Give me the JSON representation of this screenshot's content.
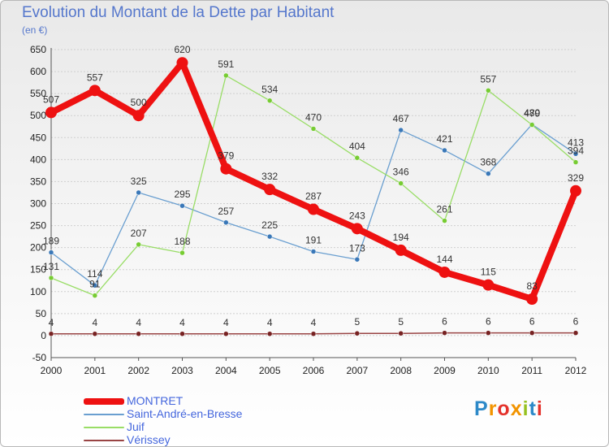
{
  "title": "Evolution du Montant de la Dette par Habitant",
  "subtitle": "(en €)",
  "logo": {
    "letters": [
      "P",
      "r",
      "o",
      "x",
      "i",
      "t",
      "i"
    ],
    "colors": [
      "#2d89c8",
      "#f29400",
      "#e4322b",
      "#f29400",
      "#95c11f",
      "#2d89c8",
      "#e4322b"
    ]
  },
  "chart_data": {
    "type": "line",
    "title": "Evolution du Montant de la Dette par Habitant",
    "ylabel": "(en €)",
    "xlabel": "",
    "x": [
      "2000",
      "2001",
      "2002",
      "2003",
      "2004",
      "2005",
      "2006",
      "2007",
      "2008",
      "2009",
      "2010",
      "2011",
      "2012"
    ],
    "ylim": [
      -50,
      650
    ],
    "yticks": [
      -50,
      0,
      50,
      100,
      150,
      200,
      250,
      300,
      350,
      400,
      450,
      500,
      550,
      600,
      650
    ],
    "grid": "horizontal",
    "legend": "bottom-left",
    "series": [
      {
        "name": "Saint-André-en-Bresse",
        "color": "#6a9fd0",
        "marker": "#3a78b8",
        "width": 1.3,
        "radius": 3,
        "values": [
          189,
          114,
          325,
          295,
          257,
          225,
          191,
          173,
          467,
          421,
          368,
          480,
          413
        ],
        "labels": [
          "189",
          "114",
          "325",
          "295",
          "257",
          "225",
          "191",
          "173",
          "467",
          "421",
          "368",
          "480",
          "413"
        ]
      },
      {
        "name": "Juif",
        "color": "#99dd66",
        "marker": "#77cc33",
        "width": 1.3,
        "radius": 3,
        "values": [
          131,
          91,
          207,
          188,
          591,
          534,
          470,
          404,
          346,
          261,
          557,
          479,
          394
        ],
        "labels": [
          "131",
          "91",
          "207",
          "188",
          "591",
          "534",
          "470",
          "404",
          "346",
          "261",
          "557",
          "479",
          "394"
        ]
      },
      {
        "name": "Vérissey",
        "color": "#994444",
        "marker": "#772222",
        "width": 1.5,
        "radius": 3,
        "values": [
          4,
          4,
          4,
          4,
          4,
          4,
          4,
          5,
          5,
          6,
          6,
          6,
          6
        ],
        "labels": [
          "4",
          "4",
          "4",
          "4",
          "4",
          "4",
          "4",
          "5",
          "5",
          "6",
          "6",
          "6",
          "6"
        ]
      },
      {
        "name": "MONTRET",
        "color": "#ee1111",
        "marker": "#ee1111",
        "width": 8,
        "radius": 7,
        "values": [
          507,
          557,
          500,
          620,
          379,
          332,
          287,
          243,
          194,
          144,
          115,
          83,
          329
        ],
        "labels": [
          "507",
          "557",
          "500",
          "620",
          "379",
          "332",
          "287",
          "243",
          "194",
          "144",
          "115",
          "83",
          "329"
        ]
      }
    ],
    "legend_order": [
      "MONTRET",
      "Saint-André-en-Bresse",
      "Juif",
      "Vérissey"
    ]
  }
}
